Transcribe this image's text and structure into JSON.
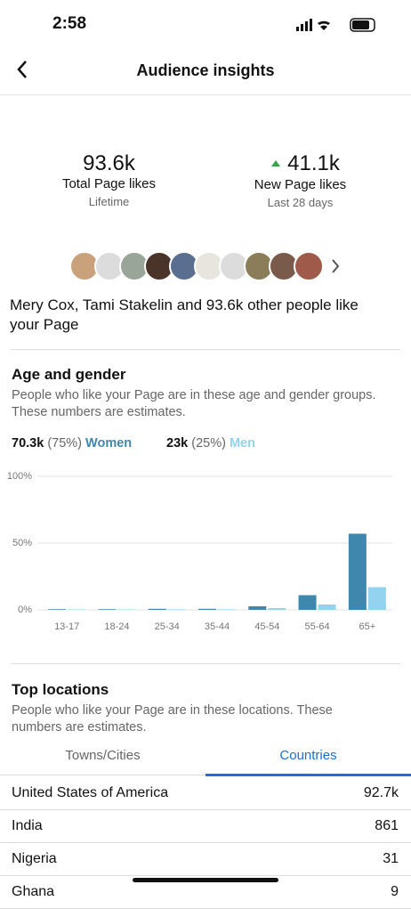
{
  "status_bar": {
    "time": "2:58"
  },
  "header": {
    "title": "Audience insights"
  },
  "stats": [
    {
      "value": "93.6k",
      "label": "Total Page likes",
      "period": "Lifetime"
    },
    {
      "value": "41.1k",
      "label": "New Page likes",
      "period": "Last 28 days"
    }
  ],
  "friends_text": "Mery Cox, Tami Stakelin and 93.6k other people like your Page",
  "age_gender": {
    "title": "Age and gender",
    "description": "People who like your Page are in these age and gender groups. These numbers are estimates.",
    "legend": [
      {
        "count": "70.3k",
        "share": "(75%)"
      },
      {
        "count": "23k",
        "share": "(25%)"
      }
    ]
  },
  "chart_data": {
    "type": "bar",
    "categories": [
      "13-17",
      "18-24",
      "25-34",
      "35-44",
      "45-54",
      "55-64",
      "65+"
    ],
    "series": [
      {
        "name": "Women",
        "color": "#3f87ad",
        "values": [
          0.5,
          0.5,
          0.8,
          0.8,
          2.7,
          11,
          57
        ]
      },
      {
        "name": "Men",
        "color": "#93d3ef",
        "values": [
          0.3,
          0.3,
          0.4,
          0.4,
          1.3,
          4,
          17
        ]
      }
    ],
    "ylim": [
      0,
      100
    ],
    "yticks": [
      {
        "value": 0,
        "label": "0%"
      },
      {
        "value": 50,
        "label": "50%"
      },
      {
        "value": 100,
        "label": "100%"
      }
    ],
    "grid": true
  },
  "locations": {
    "title": "Top locations",
    "description": "People who like your Page are in these locations. These numbers are estimates.",
    "tabs": [
      "Towns/Cities",
      "Countries"
    ],
    "rows": [
      [
        "United States of America",
        "92.7k"
      ],
      [
        "India",
        861
      ],
      [
        "Nigeria",
        31
      ],
      [
        "Ghana",
        9
      ]
    ]
  }
}
